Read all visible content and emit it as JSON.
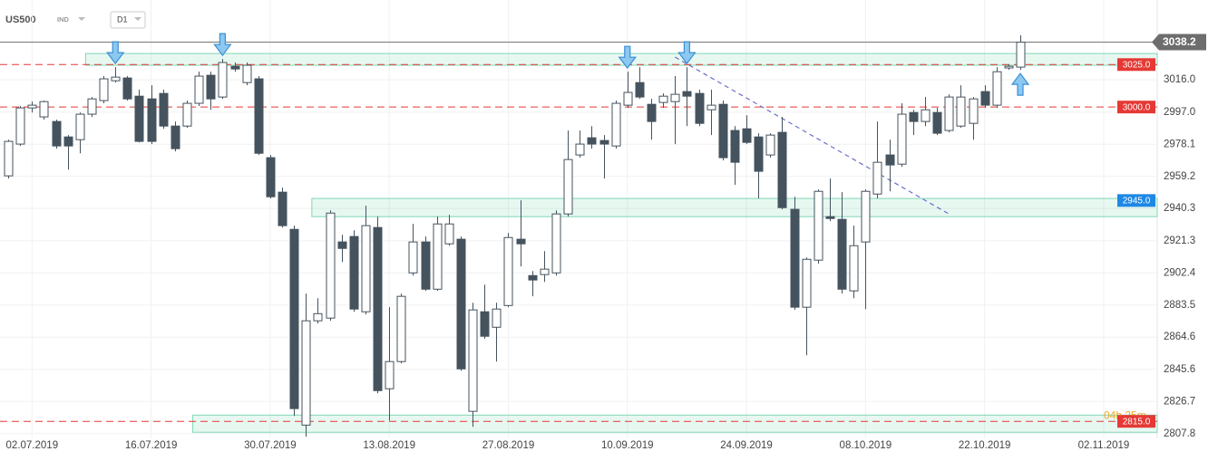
{
  "chart_data": {
    "type": "candlestick",
    "symbol": "US500",
    "instrument_type": "IND",
    "timeframe": "D1",
    "categories": [
      null,
      null,
      "02.07.2019",
      null,
      null,
      null,
      null,
      null,
      null,
      null,
      null,
      null,
      "16.07.2019",
      null,
      null,
      null,
      null,
      null,
      null,
      null,
      null,
      null,
      "30.07.2019",
      null,
      null,
      null,
      null,
      null,
      null,
      null,
      null,
      null,
      "13.08.2019",
      null,
      null,
      null,
      null,
      null,
      null,
      null,
      null,
      null,
      "27.08.2019",
      null,
      null,
      null,
      null,
      null,
      null,
      null,
      null,
      null,
      "10.09.2019",
      null,
      null,
      null,
      null,
      null,
      null,
      null,
      null,
      null,
      "24.09.2019",
      null,
      null,
      null,
      null,
      null,
      null,
      null,
      null,
      null,
      "08.10.2019",
      null,
      null,
      null,
      null,
      null,
      null,
      null,
      null,
      null,
      "22.10.2019",
      null,
      null,
      null,
      null,
      null,
      null,
      null,
      null,
      null,
      "02.11.2019",
      null,
      null,
      null,
      null
    ],
    "open": [
      2959.5,
      2978.2,
      2999.5,
      2994.2,
      2991.5,
      2982.4,
      2980.8,
      2995.8,
      3003.8,
      3015.5,
      3017.1,
      3006.4,
      3004.8,
      3008.0,
      2988.8,
      2988.8,
      3002.2,
      3018.7,
      3005.9,
      3024.0,
      3014.4,
      3016.6,
      2970.2,
      2949.9,
      2928.0,
      2812.8,
      2874.2,
      2875.8,
      2920.6,
      2923.8,
      2879.5,
      2929.1,
      2834.2,
      2850.2,
      2902.4,
      2920.6,
      2892.8,
      2919.5,
      2922.2,
      2820.9,
      2879.5,
      2870.4,
      2883.2,
      2922.2,
      2900.8,
      2901.4,
      2902.4,
      2937.1,
      2971.8,
      2981.9,
      2980.3,
      2977.1,
      3001.1,
      3014.4,
      3001.6,
      3002.7,
      3003.2,
      3009.1,
      3008.0,
      2998.4,
      3001.6,
      2986.2,
      2987.2,
      2982.4,
      2971.8,
      2985.1,
      2939.8,
      2882.2,
      2909.9,
      2935.5,
      2933.9,
      2891.8,
      2920.6,
      2948.8,
      2971.8,
      2966.4,
      2996.8,
      2991.5,
      2996.8,
      2986.2,
      2988.8,
      2990.4,
      3009.1,
      3001.1,
      3023.0,
      3023.5,
      null,
      null,
      null,
      null,
      null,
      null,
      null,
      null,
      null,
      null,
      null
    ],
    "high": [
      2980.8,
      3000.6,
      3003.2,
      3003.8,
      2992.6,
      2983.5,
      2996.8,
      3005.9,
      3018.2,
      3023.5,
      3018.2,
      3010.2,
      3012.8,
      3010.2,
      2991.5,
      3003.8,
      3020.8,
      3020.8,
      3028.3,
      3026.2,
      3026.2,
      3018.2,
      2971.8,
      2952.6,
      2930.2,
      2890.2,
      2887.5,
      2939.2,
      2924.8,
      2927.5,
      2941.9,
      2935.5,
      2882.2,
      2890.2,
      2931.2,
      2923.8,
      2935.5,
      2936.6,
      2923.8,
      2884.8,
      2895.5,
      2884.8,
      2925.9,
      2945.1,
      2903.5,
      2915.2,
      2939.2,
      2986.2,
      2986.2,
      2988.8,
      2983.5,
      3003.8,
      3020.8,
      3023.5,
      3004.8,
      3008.0,
      3018.2,
      3023.5,
      3010.2,
      3010.2,
      3003.8,
      2988.8,
      2995.2,
      2984.6,
      2984.6,
      2994.2,
      2947.2,
      2911.5,
      2951.5,
      2957.9,
      2949.9,
      2930.2,
      2951.5,
      2991.5,
      2980.8,
      3002.2,
      2998.4,
      3005.9,
      2999.5,
      3007.5,
      3012.8,
      3005.9,
      3012.8,
      3023.5,
      3025.1,
      3042.2,
      null,
      null,
      null,
      null,
      null,
      null,
      null,
      null,
      null,
      null,
      null
    ],
    "low": [
      2957.9,
      2977.1,
      2996.8,
      2992.6,
      2975.5,
      2963.2,
      2972.8,
      2994.2,
      3002.2,
      3014.4,
      3003.8,
      2979.2,
      2978.2,
      2987.2,
      2973.9,
      2987.8,
      3000.6,
      2998.4,
      3004.8,
      3020.8,
      3012.8,
      2971.8,
      2946.2,
      2929.1,
      2818.2,
      2805.9,
      2872.6,
      2874.2,
      2908.8,
      2879.5,
      2877.9,
      2831.5,
      2815.5,
      2849.1,
      2900.8,
      2891.8,
      2891.8,
      2918.4,
      2844.8,
      2811.8,
      2863.5,
      2850.2,
      2882.2,
      2906.2,
      2888.6,
      2897.1,
      2900.8,
      2935.5,
      2970.2,
      2975.5,
      2957.9,
      2975.5,
      2999.5,
      3004.8,
      2980.8,
      2999.5,
      2978.2,
      2988.8,
      2988.8,
      2983.5,
      2968.6,
      2954.2,
      2978.2,
      2946.2,
      2970.2,
      2939.8,
      2880.6,
      2853.9,
      2907.8,
      2932.8,
      2890.2,
      2887.5,
      2881.1,
      2946.2,
      2950.4,
      2964.8,
      2983.5,
      2988.8,
      2983.5,
      2985.1,
      2987.8,
      2980.8,
      2999.5,
      2999.5,
      3021.9,
      3021.9,
      null,
      null,
      null,
      null,
      null,
      null,
      null,
      null,
      null,
      null,
      null
    ],
    "close": [
      2979.8,
      2999.5,
      3001.1,
      3003.2,
      2977.1,
      2977.1,
      2995.8,
      3004.8,
      3016.6,
      3017.6,
      3004.8,
      2979.8,
      2979.8,
      2988.8,
      2975.5,
      3002.2,
      3018.2,
      3004.8,
      3026.2,
      3022.4,
      3024.6,
      2972.8,
      2947.2,
      2930.2,
      2822.5,
      2874.2,
      2878.4,
      2937.6,
      2916.8,
      2881.1,
      2930.2,
      2833.1,
      2850.2,
      2888.6,
      2920.6,
      2892.8,
      2931.2,
      2931.2,
      2845.9,
      2880.6,
      2865.1,
      2881.1,
      2923.2,
      2919.5,
      2898.2,
      2904.6,
      2937.1,
      2969.1,
      2978.2,
      2978.2,
      2978.2,
      3002.2,
      3008.6,
      3005.9,
      2991.5,
      3006.4,
      3007.5,
      3006.4,
      2990.4,
      3001.1,
      2970.2,
      2967.5,
      2979.2,
      2962.2,
      2983.5,
      2940.8,
      2882.2,
      2910.4,
      2950.4,
      2934.4,
      2892.8,
      2918.4,
      2950.4,
      2967.5,
      2965.9,
      2995.8,
      2991.5,
      2998.4,
      2984.6,
      3005.9,
      3005.9,
      3004.8,
      3001.1,
      3020.8,
      3024.0,
      3038.2,
      null,
      null,
      null,
      null,
      null,
      null,
      null,
      null,
      null,
      null,
      null
    ],
    "up_color": "#ffffff",
    "down_color": "#45535e",
    "wick_color": "#45535e",
    "ylim": [
      2805,
      3063
    ],
    "yticks": [
      {
        "value": 3016,
        "label": "3016.0"
      },
      {
        "value": 2997,
        "label": "2997.0"
      },
      2978.1,
      2959.2,
      2940.3,
      2921.3,
      2902.4,
      2883.5,
      2864.6,
      2845.6,
      2826.7,
      2807.8
    ],
    "grid": true,
    "last_price": 3038.2,
    "levels": [
      {
        "value": 3025,
        "label": "3025.0",
        "color": "#e53935",
        "line": true
      },
      {
        "value": 3000,
        "label": "3000.0",
        "color": "#e53935",
        "line": true
      },
      {
        "value": 2945,
        "label": "2945.0",
        "color": "#1e88e5",
        "line": false
      },
      {
        "value": 2815,
        "label": "2815.0",
        "color": "#e53935",
        "line": true
      }
    ],
    "zones": [
      {
        "low": 3024.6,
        "high": 3031.5,
        "start": 7
      },
      {
        "low": 2935.5,
        "high": 2946.2,
        "start": 26
      },
      {
        "low": 2808.6,
        "high": 2818.7,
        "start": 16
      }
    ],
    "trendline": {
      "start": 56,
      "start_value": 3029.4,
      "end": 79,
      "end_value": 2937.1
    },
    "markers": [
      {
        "index": 9,
        "direction": "down"
      },
      {
        "index": 18,
        "direction": "down"
      },
      {
        "index": 52,
        "direction": "down"
      },
      {
        "index": 57,
        "direction": "down"
      },
      {
        "index": 85,
        "direction": "up"
      }
    ],
    "countdown": "04h 25m"
  }
}
